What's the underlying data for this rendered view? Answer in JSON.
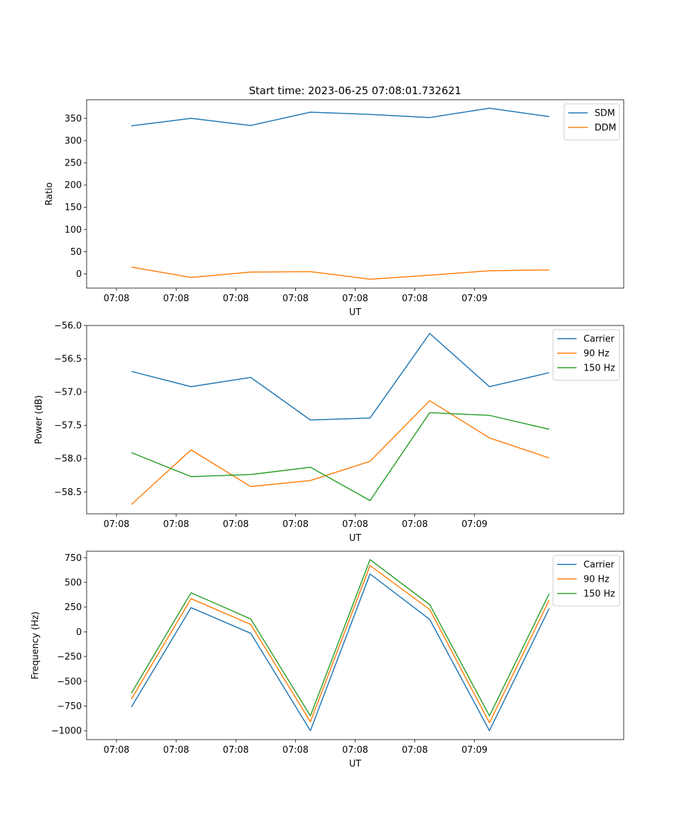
{
  "figure": {
    "title": "Start time: 2023-06-25 07:08:01.732621"
  },
  "chart_data": [
    {
      "type": "line",
      "title": "Start time: 2023-06-25 07:08:01.732621",
      "xlabel": "UT",
      "ylabel": "Ratio",
      "xticks": [
        "07:08",
        "07:08",
        "07:08",
        "07:08",
        "07:08",
        "07:08",
        "07:09"
      ],
      "xlim": [
        -0.5,
        8.5
      ],
      "x": [
        0.25,
        1.25,
        2.25,
        3.25,
        4.25,
        5.25,
        6.25,
        7.25
      ],
      "ylim": [
        -32,
        392
      ],
      "yticks": [
        0,
        50,
        100,
        150,
        200,
        250,
        300,
        350
      ],
      "yticklabels": [
        "0",
        "50",
        "100",
        "150",
        "200",
        "250",
        "300",
        "350"
      ],
      "grid": false,
      "legend_position": "top-right",
      "series": [
        {
          "name": "SDM",
          "color": "#1f77b4",
          "values": [
            333,
            350,
            334,
            364,
            359,
            352,
            373,
            354
          ]
        },
        {
          "name": "DDM",
          "color": "#ff7f0e",
          "values": [
            15,
            -8,
            4,
            5,
            -12,
            -3,
            7,
            9
          ]
        }
      ]
    },
    {
      "type": "line",
      "title": "",
      "xlabel": "UT",
      "ylabel": "Power (dB)",
      "xticks": [
        "07:08",
        "07:08",
        "07:08",
        "07:08",
        "07:08",
        "07:08",
        "07:09"
      ],
      "xlim": [
        -0.5,
        8.5
      ],
      "x": [
        0.25,
        1.25,
        2.25,
        3.25,
        4.25,
        5.25,
        6.25,
        7.25
      ],
      "ylim": [
        -58.83,
        -56.0
      ],
      "yticks": [
        -58.5,
        -58.0,
        -57.5,
        -57.0,
        -56.5,
        -56.0
      ],
      "yticklabels": [
        "−58.5",
        "−58.0",
        "−57.5",
        "−57.0",
        "−56.5",
        "−56.0"
      ],
      "grid": false,
      "legend_position": "top-right",
      "series": [
        {
          "name": "Carrier",
          "color": "#1f77b4",
          "values": [
            -56.69,
            -56.92,
            -56.78,
            -57.42,
            -57.39,
            -56.12,
            -56.92,
            -56.71
          ]
        },
        {
          "name": "90 Hz",
          "color": "#ff7f0e",
          "values": [
            -58.69,
            -57.87,
            -58.42,
            -58.33,
            -58.04,
            -57.13,
            -57.69,
            -57.99
          ]
        },
        {
          "name": "150 Hz",
          "color": "#2ca02c",
          "values": [
            -57.91,
            -58.27,
            -58.24,
            -58.13,
            -58.63,
            -57.31,
            -57.35,
            -57.56
          ]
        }
      ]
    },
    {
      "type": "line",
      "title": "",
      "xlabel": "UT",
      "ylabel": "Frequency (Hz)",
      "xticks": [
        "07:08",
        "07:08",
        "07:08",
        "07:08",
        "07:08",
        "07:08",
        "07:09"
      ],
      "xlim": [
        -0.5,
        8.5
      ],
      "x": [
        0.25,
        1.25,
        2.25,
        3.25,
        4.25,
        5.25,
        6.25,
        7.25
      ],
      "ylim": [
        -1090,
        815
      ],
      "yticks": [
        -1000,
        -750,
        -500,
        -250,
        0,
        250,
        500,
        750
      ],
      "yticklabels": [
        "−1000",
        "−750",
        "−500",
        "−250",
        "0",
        "250",
        "500",
        "750"
      ],
      "grid": false,
      "legend_position": "top-right",
      "series": [
        {
          "name": "Carrier",
          "color": "#1f77b4",
          "values": [
            -760,
            245,
            -15,
            -1000,
            585,
            125,
            -1000,
            235
          ]
        },
        {
          "name": "90 Hz",
          "color": "#ff7f0e",
          "values": [
            -680,
            335,
            75,
            -910,
            670,
            225,
            -920,
            320
          ]
        },
        {
          "name": "150 Hz",
          "color": "#2ca02c",
          "values": [
            -620,
            395,
            130,
            -850,
            730,
            275,
            -850,
            385
          ]
        }
      ]
    }
  ]
}
